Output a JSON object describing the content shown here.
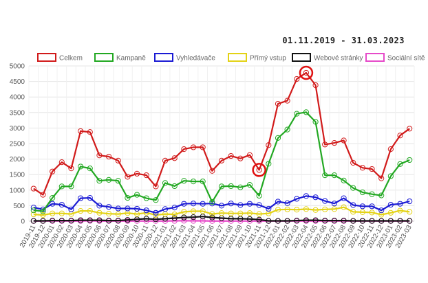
{
  "date_range": "01.11.2019 - 31.03.2023",
  "chart_data": {
    "type": "line",
    "title": "",
    "xlabel": "",
    "ylabel": "",
    "ylim": [
      0,
      5000
    ],
    "yticks": [
      0,
      500,
      1000,
      1500,
      2000,
      2500,
      3000,
      3500,
      4000,
      4500,
      5000
    ],
    "grid": true,
    "legend_position": "top",
    "x": [
      "2019-11",
      "2019-12",
      "2020-01",
      "2020-02",
      "2020-03",
      "2020-04",
      "2020-05",
      "2020-06",
      "2020-07",
      "2020-08",
      "2020-09",
      "2020-10",
      "2020-11",
      "2020-12",
      "2021-01",
      "2021-02",
      "2021-03",
      "2021-04",
      "2021-05",
      "2021-06",
      "2021-07",
      "2021-08",
      "2021-09",
      "2021-10",
      "2021-11",
      "2021-12",
      "2022-01",
      "2022-02",
      "2022-03",
      "2022-04",
      "2022-05",
      "2022-06",
      "2022-07",
      "2022-08",
      "2022-09",
      "2022-10",
      "2022-11",
      "2022-12",
      "2023-01",
      "2023-02",
      "2023-03"
    ],
    "series": [
      {
        "name": "Celkem",
        "color": "#d11a1a",
        "values": [
          1050,
          850,
          1600,
          1900,
          1700,
          2900,
          2870,
          2120,
          2080,
          1950,
          1430,
          1530,
          1480,
          1120,
          1950,
          2030,
          2320,
          2380,
          2380,
          1620,
          1950,
          2100,
          2020,
          2130,
          1650,
          2450,
          3780,
          3880,
          4580,
          4780,
          4380,
          2470,
          2520,
          2600,
          1880,
          1720,
          1680,
          1380,
          2320,
          2760,
          2980
        ]
      },
      {
        "name": "Kampaně",
        "color": "#22a822",
        "values": [
          350,
          320,
          750,
          1120,
          1120,
          1760,
          1700,
          1300,
          1330,
          1300,
          750,
          850,
          740,
          680,
          1230,
          1130,
          1300,
          1280,
          1280,
          620,
          1120,
          1130,
          1090,
          1170,
          820,
          1850,
          2680,
          2950,
          3460,
          3510,
          3200,
          1480,
          1480,
          1310,
          1070,
          930,
          870,
          830,
          1450,
          1840,
          1970
        ]
      },
      {
        "name": "Vyhledávače",
        "color": "#1a1ad4",
        "values": [
          440,
          380,
          560,
          530,
          380,
          740,
          750,
          500,
          460,
          410,
          410,
          400,
          350,
          270,
          390,
          440,
          560,
          570,
          560,
          570,
          500,
          570,
          520,
          560,
          520,
          400,
          630,
          580,
          720,
          810,
          770,
          650,
          570,
          740,
          520,
          480,
          480,
          350,
          530,
          560,
          640
        ]
      },
      {
        "name": "Přímý vstup",
        "color": "#e3d215",
        "values": [
          220,
          200,
          250,
          250,
          230,
          330,
          330,
          270,
          240,
          230,
          260,
          230,
          270,
          200,
          230,
          220,
          300,
          320,
          320,
          230,
          260,
          250,
          250,
          260,
          230,
          250,
          370,
          380,
          370,
          390,
          360,
          380,
          390,
          450,
          300,
          290,
          280,
          210,
          270,
          340,
          300
        ]
      },
      {
        "name": "Webové stránky",
        "color": "#111111",
        "values": [
          10,
          10,
          20,
          20,
          20,
          30,
          30,
          30,
          20,
          20,
          40,
          60,
          80,
          60,
          80,
          100,
          120,
          130,
          150,
          120,
          100,
          80,
          80,
          70,
          50,
          10,
          10,
          10,
          20,
          30,
          30,
          20,
          20,
          20,
          10,
          10,
          10,
          10,
          10,
          10,
          10
        ]
      },
      {
        "name": "Sociální sítě",
        "color": "#e64ac9",
        "values": [
          5,
          5,
          5,
          5,
          5,
          5,
          10,
          5,
          5,
          5,
          5,
          5,
          5,
          5,
          5,
          10,
          15,
          10,
          10,
          5,
          5,
          5,
          5,
          5,
          5,
          5,
          5,
          5,
          5,
          5,
          5,
          5,
          5,
          5,
          5,
          5,
          5,
          5,
          5,
          5,
          5
        ]
      }
    ],
    "highlighted_points": [
      {
        "x": "2021-11",
        "series": "Celkem"
      },
      {
        "x": "2022-04",
        "series": "Celkem"
      }
    ]
  }
}
